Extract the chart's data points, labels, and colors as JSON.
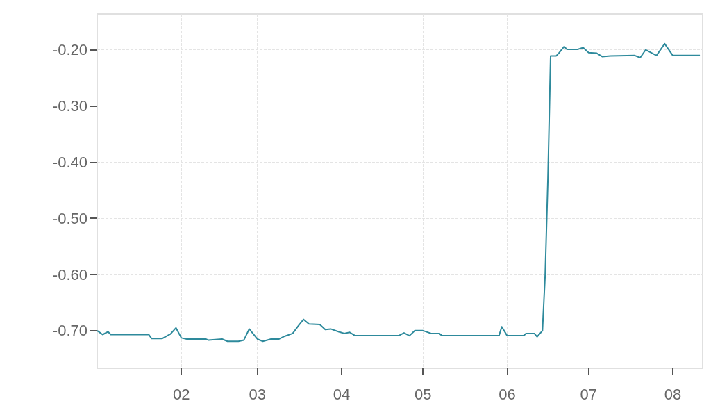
{
  "chart_data": {
    "type": "line",
    "x": [
      "--01-01",
      "--01-03",
      "--01-05",
      "--01-06",
      "--01-20",
      "--01-21",
      "--01-25",
      "--01-28",
      "--01-30",
      "--02-01",
      "--02-03",
      "--02-10",
      "--02-11",
      "--02-16",
      "--02-18",
      "--02-22",
      "--02-24",
      "--02-26",
      "--03-01",
      "--03-03",
      "--03-06",
      "--03-09",
      "--03-11",
      "--03-14",
      "--03-16",
      "--03-18",
      "--03-20",
      "--03-24",
      "--03-26",
      "--03-28",
      "--03-31",
      "--04-02",
      "--04-04",
      "--04-06",
      "--04-22",
      "--04-24",
      "--04-26",
      "--04-28",
      "--05-01",
      "--05-04",
      "--05-07",
      "--05-08",
      "--05-29",
      "--05-30",
      "--06-01",
      "--06-07",
      "--06-08",
      "--06-11",
      "--06-12",
      "--06-14",
      "--06-15",
      "--06-16",
      "--06-17",
      "--06-19",
      "--06-20",
      "--06-22",
      "--06-23",
      "--06-27",
      "--06-29",
      "--07-01",
      "--07-04",
      "--07-06",
      "--07-09",
      "--07-18",
      "--07-20",
      "--07-22",
      "--07-26",
      "--07-29",
      "--08-01",
      "--08-11"
    ],
    "series": [
      {
        "color": "#2e8a9c",
        "values": [
          -0.7,
          -0.707,
          -0.702,
          -0.707,
          -0.707,
          -0.714,
          -0.714,
          -0.706,
          -0.695,
          -0.713,
          -0.715,
          -0.715,
          -0.717,
          -0.715,
          -0.719,
          -0.719,
          -0.717,
          -0.697,
          -0.715,
          -0.719,
          -0.715,
          -0.715,
          -0.71,
          -0.705,
          -0.692,
          -0.68,
          -0.688,
          -0.689,
          -0.698,
          -0.697,
          -0.702,
          -0.705,
          -0.703,
          -0.709,
          -0.709,
          -0.704,
          -0.709,
          -0.7,
          -0.7,
          -0.705,
          -0.705,
          -0.709,
          -0.709,
          -0.693,
          -0.709,
          -0.709,
          -0.705,
          -0.705,
          -0.711,
          -0.7,
          -0.6,
          -0.43,
          -0.211,
          -0.211,
          -0.206,
          -0.194,
          -0.199,
          -0.199,
          -0.196,
          -0.205,
          -0.206,
          -0.212,
          -0.211,
          -0.21,
          -0.214,
          -0.2,
          -0.21,
          -0.189,
          -0.21,
          -0.21
        ]
      }
    ],
    "xlim": [
      "--01-01",
      "--08-12"
    ],
    "xticks": [
      {
        "value": "--02-01",
        "label": "02"
      },
      {
        "value": "--03-01",
        "label": "03"
      },
      {
        "value": "--04-01",
        "label": "04"
      },
      {
        "value": "--05-01",
        "label": "05"
      },
      {
        "value": "--06-01",
        "label": "06"
      },
      {
        "value": "--07-01",
        "label": "07"
      },
      {
        "value": "--08-01",
        "label": "08"
      }
    ],
    "ylim": [
      -0.767,
      -0.136
    ],
    "yticks": [
      {
        "value": -0.7,
        "label": "-0.70"
      },
      {
        "value": -0.6,
        "label": "-0.60"
      },
      {
        "value": -0.5,
        "label": "-0.50"
      },
      {
        "value": -0.4,
        "label": "-0.40"
      },
      {
        "value": -0.3,
        "label": "-0.30"
      },
      {
        "value": -0.2,
        "label": "-0.20"
      }
    ],
    "grid": true,
    "marker": "none",
    "line_style": "solid"
  }
}
